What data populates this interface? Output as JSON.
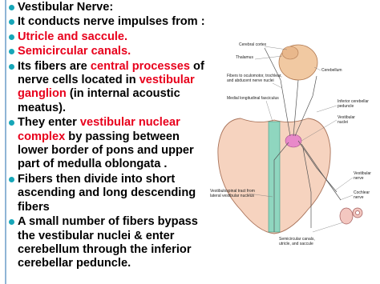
{
  "bullets": [
    {
      "runs": [
        {
          "text": "Vestibular Nerve:"
        }
      ]
    },
    {
      "runs": [
        {
          "text": "It conducts nerve impulses from :"
        }
      ]
    },
    {
      "runs": [
        {
          "text": "Utricle and saccule.",
          "highlight": true
        }
      ]
    },
    {
      "runs": [
        {
          "text": "Semicircular canals.",
          "highlight": true
        }
      ]
    },
    {
      "runs": [
        {
          "text": "Its fibers are "
        },
        {
          "text": "central processes",
          "highlight": true
        },
        {
          "text": " of nerve cells located in "
        },
        {
          "text": "vestibular ganglion",
          "highlight": true
        },
        {
          "text": " (in internal acoustic meatus)."
        }
      ]
    },
    {
      "runs": [
        {
          "text": "They enter  "
        },
        {
          "text": "vestibular nuclear complex",
          "highlight": true
        },
        {
          "text": " by passing  between lower border of pons and upper part of medulla oblongata ."
        }
      ]
    },
    {
      "runs": [
        {
          "text": "Fibers then divide into short ascending and long descending fibers"
        }
      ]
    },
    {
      "runs": [
        {
          "text": "A small number of fibers bypass the vestibular nuclei & enter cerebellum through the inferior cerebellar peduncle."
        }
      ]
    }
  ],
  "diagram": {
    "labels": [
      {
        "lines": [
          "Cerebral cortex"
        ]
      },
      {
        "lines": [
          "Thalamus"
        ]
      },
      {
        "lines": [
          "Cerebellum"
        ]
      },
      {
        "lines": [
          "Fibers to oculomotor, trochlear,",
          "and abducent nerve nuclei"
        ]
      },
      {
        "lines": [
          "Medial longitudinal fasciculus"
        ]
      },
      {
        "lines": [
          "Inferior cerebellar",
          "peduncle"
        ]
      },
      {
        "lines": [
          "Vestibular",
          "nuclei"
        ]
      },
      {
        "lines": [
          "Vestibular",
          "nerve"
        ]
      },
      {
        "lines": [
          "Cochlear",
          "nerve"
        ]
      },
      {
        "lines": [
          "Vestibulospinal tract from",
          "lateral vestibular nucleus"
        ]
      },
      {
        "lines": [
          "Semicircular canals,",
          "utricle, and saccule"
        ]
      }
    ]
  }
}
